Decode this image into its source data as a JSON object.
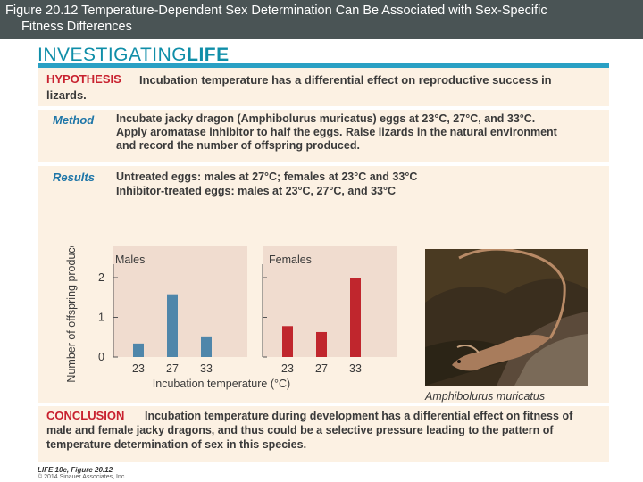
{
  "header": {
    "line1": "Figure 20.12 Temperature-Dependent Sex Determination Can Be Associated with Sex-Specific",
    "line2": "Fitness Differences"
  },
  "brand": {
    "part1": "INVESTIGATING",
    "part2": "LIFE"
  },
  "hypothesis": {
    "label": "HYPOTHESIS",
    "text": "Incubation temperature has a differential effect on reproductive success in lizards."
  },
  "method": {
    "label": "Method",
    "text": "Incubate jacky dragon (Amphibolurus muricatus) eggs at 23°C, 27°C, and 33°C. Apply aromatase inhibitor to half the eggs. Raise lizards in the natural environment and record the number of offspring produced."
  },
  "results": {
    "label": "Results",
    "line1": "Untreated eggs: males at 27°C; females at 23°C and 33°C",
    "line2": "Inhibitor-treated eggs: males at 23°C, 27°C, and 33°C"
  },
  "chart_data": {
    "type": "bar",
    "ylabel": "Number of offspring produced",
    "xlabel": "Incubation temperature (°C)",
    "ylim": [
      0,
      2.4
    ],
    "yticks": [
      "0",
      "1",
      "2"
    ],
    "categories": [
      "23",
      "27",
      "33"
    ],
    "panels": [
      {
        "name": "Males",
        "color": "#4f86aa",
        "values": [
          0.34,
          1.58,
          0.52
        ]
      },
      {
        "name": "Females",
        "color": "#c0262d",
        "values": [
          0.78,
          0.63,
          1.98
        ]
      }
    ]
  },
  "photo": {
    "caption": "Amphibolurus muricatus"
  },
  "conclusion": {
    "label": "CONCLUSION",
    "text": "Incubation temperature during development has a differential effect on fitness of male and female jacky dragons, and thus could be a selective pressure leading to the pattern of temperature determination of sex in this species."
  },
  "footer": {
    "line1": "LIFE 10e, Figure 20.12",
    "line2": "© 2014 Sinauer Associates, Inc."
  }
}
